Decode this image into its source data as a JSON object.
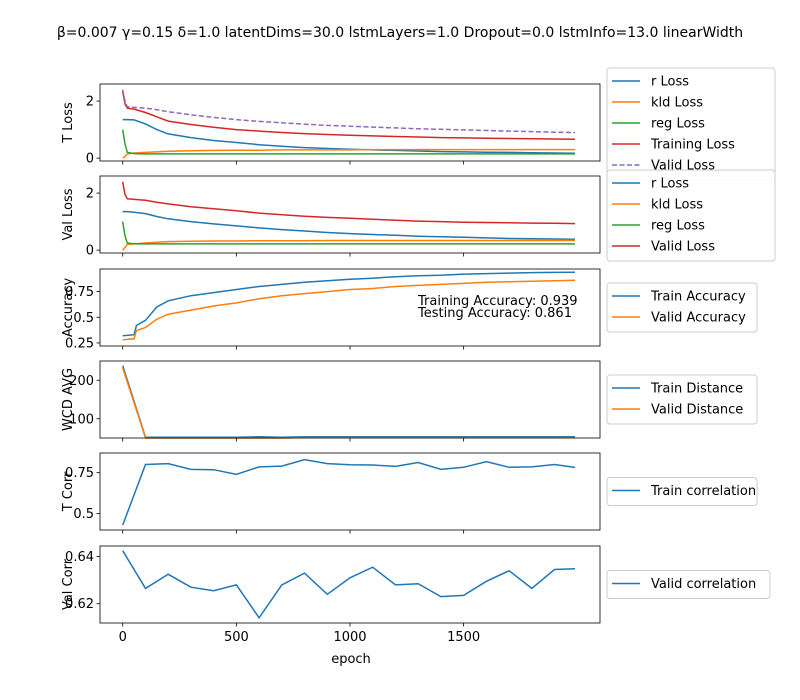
{
  "figure": {
    "title": "β=0.007 γ=0.15 δ=1.0 latentDims=30.0 lstmLayers=1.0 Dropout=0.0 lstmInfo=13.0 linearWidth",
    "xlabel": "epoch"
  },
  "colors": {
    "blue": "#1f77b4",
    "orange": "#ff7f0e",
    "green": "#2ca02c",
    "red": "#d62728",
    "purple": "#9467bd"
  },
  "chart_data": [
    {
      "type": "line",
      "ylabel": "T Loss",
      "xlim": [
        0,
        2000
      ],
      "ylim": [
        -0.1,
        2.6
      ],
      "yticks": [
        0,
        2
      ],
      "legend_placement": "outside-right",
      "x": [
        0,
        10,
        20,
        50,
        100,
        150,
        200,
        300,
        400,
        500,
        600,
        700,
        800,
        900,
        1000,
        1100,
        1200,
        1300,
        1400,
        1500,
        1600,
        1700,
        1800,
        1900,
        1990
      ],
      "series": [
        {
          "name": "r Loss",
          "color": "#1f77b4",
          "values": [
            1.35,
            1.35,
            1.35,
            1.34,
            1.2,
            1.0,
            0.85,
            0.72,
            0.62,
            0.55,
            0.47,
            0.42,
            0.37,
            0.34,
            0.31,
            0.29,
            0.27,
            0.25,
            0.23,
            0.22,
            0.21,
            0.2,
            0.19,
            0.18,
            0.17
          ]
        },
        {
          "name": "kld Loss",
          "color": "#ff7f0e",
          "values": [
            0.0,
            0.05,
            0.15,
            0.18,
            0.2,
            0.22,
            0.24,
            0.26,
            0.27,
            0.28,
            0.28,
            0.29,
            0.29,
            0.29,
            0.29,
            0.3,
            0.3,
            0.3,
            0.3,
            0.3,
            0.3,
            0.3,
            0.3,
            0.3,
            0.3
          ]
        },
        {
          "name": "reg Loss",
          "color": "#2ca02c",
          "values": [
            1.0,
            0.5,
            0.2,
            0.16,
            0.15,
            0.15,
            0.15,
            0.15,
            0.15,
            0.15,
            0.15,
            0.15,
            0.15,
            0.15,
            0.15,
            0.15,
            0.15,
            0.15,
            0.15,
            0.15,
            0.15,
            0.15,
            0.15,
            0.15,
            0.15
          ]
        },
        {
          "name": "Training Loss",
          "color": "#d62728",
          "values": [
            2.35,
            1.9,
            1.75,
            1.72,
            1.6,
            1.45,
            1.3,
            1.18,
            1.08,
            1.0,
            0.95,
            0.9,
            0.86,
            0.83,
            0.8,
            0.78,
            0.76,
            0.74,
            0.72,
            0.71,
            0.7,
            0.69,
            0.68,
            0.67,
            0.66
          ]
        },
        {
          "name": "Valid Loss",
          "color": "#9467bd",
          "dashed": true,
          "values": [
            2.4,
            2.0,
            1.8,
            1.78,
            1.75,
            1.7,
            1.63,
            1.52,
            1.43,
            1.35,
            1.29,
            1.24,
            1.19,
            1.15,
            1.12,
            1.09,
            1.06,
            1.03,
            1.01,
            0.99,
            0.97,
            0.95,
            0.93,
            0.91,
            0.9
          ]
        }
      ]
    },
    {
      "type": "line",
      "ylabel": "Val Loss",
      "xlim": [
        0,
        2000
      ],
      "ylim": [
        -0.1,
        2.6
      ],
      "yticks": [
        0,
        2
      ],
      "legend_placement": "outside-right",
      "x": [
        0,
        10,
        20,
        50,
        100,
        150,
        200,
        300,
        400,
        500,
        600,
        700,
        800,
        900,
        1000,
        1100,
        1200,
        1300,
        1400,
        1500,
        1600,
        1700,
        1800,
        1900,
        1990
      ],
      "series": [
        {
          "name": "r Loss",
          "color": "#1f77b4",
          "values": [
            1.35,
            1.35,
            1.35,
            1.33,
            1.28,
            1.18,
            1.1,
            1.0,
            0.92,
            0.85,
            0.78,
            0.72,
            0.67,
            0.62,
            0.58,
            0.55,
            0.52,
            0.49,
            0.47,
            0.45,
            0.43,
            0.41,
            0.4,
            0.39,
            0.38
          ]
        },
        {
          "name": "kld Loss",
          "color": "#ff7f0e",
          "values": [
            0.0,
            0.1,
            0.2,
            0.22,
            0.25,
            0.28,
            0.3,
            0.31,
            0.32,
            0.32,
            0.33,
            0.33,
            0.33,
            0.34,
            0.34,
            0.34,
            0.34,
            0.34,
            0.34,
            0.34,
            0.34,
            0.34,
            0.34,
            0.34,
            0.34
          ]
        },
        {
          "name": "reg Loss",
          "color": "#2ca02c",
          "values": [
            1.0,
            0.5,
            0.25,
            0.22,
            0.22,
            0.22,
            0.22,
            0.22,
            0.22,
            0.22,
            0.22,
            0.22,
            0.22,
            0.22,
            0.22,
            0.22,
            0.22,
            0.22,
            0.22,
            0.22,
            0.22,
            0.22,
            0.22,
            0.22,
            0.22
          ]
        },
        {
          "name": "Valid Loss",
          "color": "#d62728",
          "values": [
            2.4,
            1.95,
            1.8,
            1.78,
            1.75,
            1.68,
            1.62,
            1.52,
            1.45,
            1.38,
            1.3,
            1.24,
            1.19,
            1.15,
            1.12,
            1.08,
            1.05,
            1.02,
            1.0,
            0.98,
            0.97,
            0.96,
            0.95,
            0.94,
            0.93
          ]
        }
      ]
    },
    {
      "type": "line",
      "ylabel": "Accuracy",
      "xlim": [
        0,
        2000
      ],
      "ylim": [
        0.22,
        0.97
      ],
      "yticks": [
        0.25,
        0.5,
        0.75
      ],
      "legend_placement": "outside-right",
      "annotations": [
        "Training Accuracy: 0.939",
        "Testing Accuracy: 0.861"
      ],
      "x": [
        0,
        50,
        60,
        100,
        150,
        200,
        300,
        400,
        500,
        600,
        700,
        800,
        900,
        1000,
        1100,
        1200,
        1300,
        1400,
        1500,
        1600,
        1700,
        1800,
        1900,
        1990
      ],
      "series": [
        {
          "name": "Train Accuracy",
          "color": "#1f77b4",
          "values": [
            0.32,
            0.33,
            0.42,
            0.47,
            0.6,
            0.66,
            0.71,
            0.74,
            0.77,
            0.8,
            0.82,
            0.84,
            0.855,
            0.87,
            0.88,
            0.895,
            0.905,
            0.91,
            0.92,
            0.925,
            0.93,
            0.935,
            0.937,
            0.939
          ]
        },
        {
          "name": "Valid Accuracy",
          "color": "#ff7f0e",
          "values": [
            0.28,
            0.29,
            0.37,
            0.4,
            0.48,
            0.53,
            0.57,
            0.61,
            0.64,
            0.68,
            0.71,
            0.73,
            0.75,
            0.77,
            0.78,
            0.8,
            0.81,
            0.82,
            0.83,
            0.84,
            0.845,
            0.85,
            0.855,
            0.861
          ]
        }
      ]
    },
    {
      "type": "line",
      "ylabel": "WCD AVG",
      "xlim": [
        0,
        2000
      ],
      "ylim": [
        50,
        250
      ],
      "yticks": [
        100,
        200
      ],
      "legend_placement": "outside-right",
      "x": [
        0,
        100,
        200,
        300,
        400,
        500,
        600,
        700,
        800,
        900,
        1000,
        1100,
        1200,
        1300,
        1400,
        1500,
        1600,
        1700,
        1800,
        1900,
        1990
      ],
      "series": [
        {
          "name": "Train Distance",
          "color": "#1f77b4",
          "values": [
            238,
            52,
            52,
            52,
            52,
            52,
            53,
            52,
            53,
            53,
            53,
            53,
            53,
            53,
            53,
            53,
            53,
            53,
            53,
            53,
            53
          ]
        },
        {
          "name": "Valid Distance",
          "color": "#ff7f0e",
          "values": [
            232,
            50,
            50,
            50,
            50,
            50,
            50,
            50,
            51,
            51,
            51,
            51,
            51,
            51,
            51,
            51,
            51,
            51,
            51,
            51,
            51
          ]
        }
      ]
    },
    {
      "type": "line",
      "ylabel": "T Corr",
      "xlim": [
        0,
        2000
      ],
      "ylim": [
        0.4,
        0.87
      ],
      "yticks": [
        0.5,
        0.75
      ],
      "legend_placement": "outside-right",
      "x": [
        0,
        100,
        200,
        300,
        400,
        500,
        600,
        700,
        800,
        900,
        1000,
        1100,
        1200,
        1300,
        1400,
        1500,
        1600,
        1700,
        1800,
        1900,
        1990
      ],
      "series": [
        {
          "name": "Train correlation",
          "color": "#1f77b4",
          "values": [
            0.43,
            0.8,
            0.805,
            0.77,
            0.768,
            0.74,
            0.785,
            0.79,
            0.83,
            0.805,
            0.798,
            0.797,
            0.788,
            0.812,
            0.77,
            0.783,
            0.817,
            0.783,
            0.785,
            0.8,
            0.782
          ]
        }
      ]
    },
    {
      "type": "line",
      "ylabel": "Val Corr",
      "xlim": [
        0,
        2000
      ],
      "ylim": [
        0.6118,
        0.6445
      ],
      "yticks": [
        0.62,
        0.64
      ],
      "legend_placement": "outside-right",
      "x": [
        0,
        100,
        200,
        300,
        400,
        500,
        600,
        700,
        800,
        900,
        1000,
        1100,
        1200,
        1300,
        1400,
        1500,
        1600,
        1700,
        1800,
        1900,
        1990
      ],
      "series": [
        {
          "name": "Valid correlation",
          "color": "#1f77b4",
          "values": [
            0.6425,
            0.6265,
            0.6325,
            0.627,
            0.6255,
            0.628,
            0.614,
            0.628,
            0.633,
            0.624,
            0.631,
            0.6355,
            0.628,
            0.6285,
            0.623,
            0.6235,
            0.6295,
            0.634,
            0.6265,
            0.6345,
            0.6348
          ]
        }
      ]
    }
  ],
  "xaxis": {
    "ticks": [
      0,
      500,
      1000,
      1500
    ]
  }
}
